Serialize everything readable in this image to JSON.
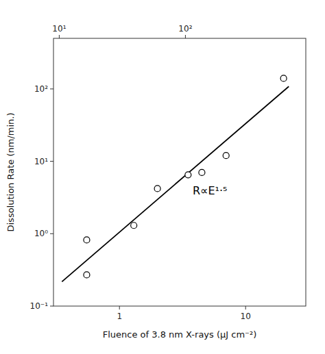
{
  "chart_data": {
    "type": "scatter",
    "xlabel": "Fluence of 3.8 nm X-rays (μJ cm⁻²)",
    "ylabel": "Dissolution Rate (nm/min.)",
    "log": true,
    "grid": false,
    "xlim": [
      0.3,
      30.0
    ],
    "ylim": [
      0.1,
      500.0
    ],
    "xticks": [
      1,
      10
    ],
    "yticks": [
      {
        "value": 0.1,
        "label": "10⁻¹"
      },
      {
        "value": 1,
        "label": "10⁰"
      },
      {
        "value": 10,
        "label": "10¹"
      },
      {
        "value": 100,
        "label": "10²"
      }
    ],
    "x2lim": [
      9.0,
      900.0
    ],
    "x2ticks": [
      {
        "value": 10,
        "label": "10¹"
      },
      {
        "value": 100,
        "label": "10²"
      }
    ],
    "series": [
      {
        "type": "scatter",
        "marker": "circle",
        "color": "black",
        "x": [
          0.55,
          0.55,
          1.3,
          2.0,
          3.5,
          4.5,
          7.0,
          20.0
        ],
        "values": [
          0.82,
          0.27,
          1.3,
          4.2,
          6.5,
          7.0,
          12.0,
          140.0
        ]
      },
      {
        "type": "line",
        "line_style": "solid",
        "color": "black",
        "x": [
          0.35,
          22.0
        ],
        "values": [
          0.217416,
          108.3486
        ]
      }
    ],
    "annotations": [
      {
        "text": "R∝E¹·⁵",
        "x": 3.8,
        "y": 3.5
      }
    ]
  }
}
